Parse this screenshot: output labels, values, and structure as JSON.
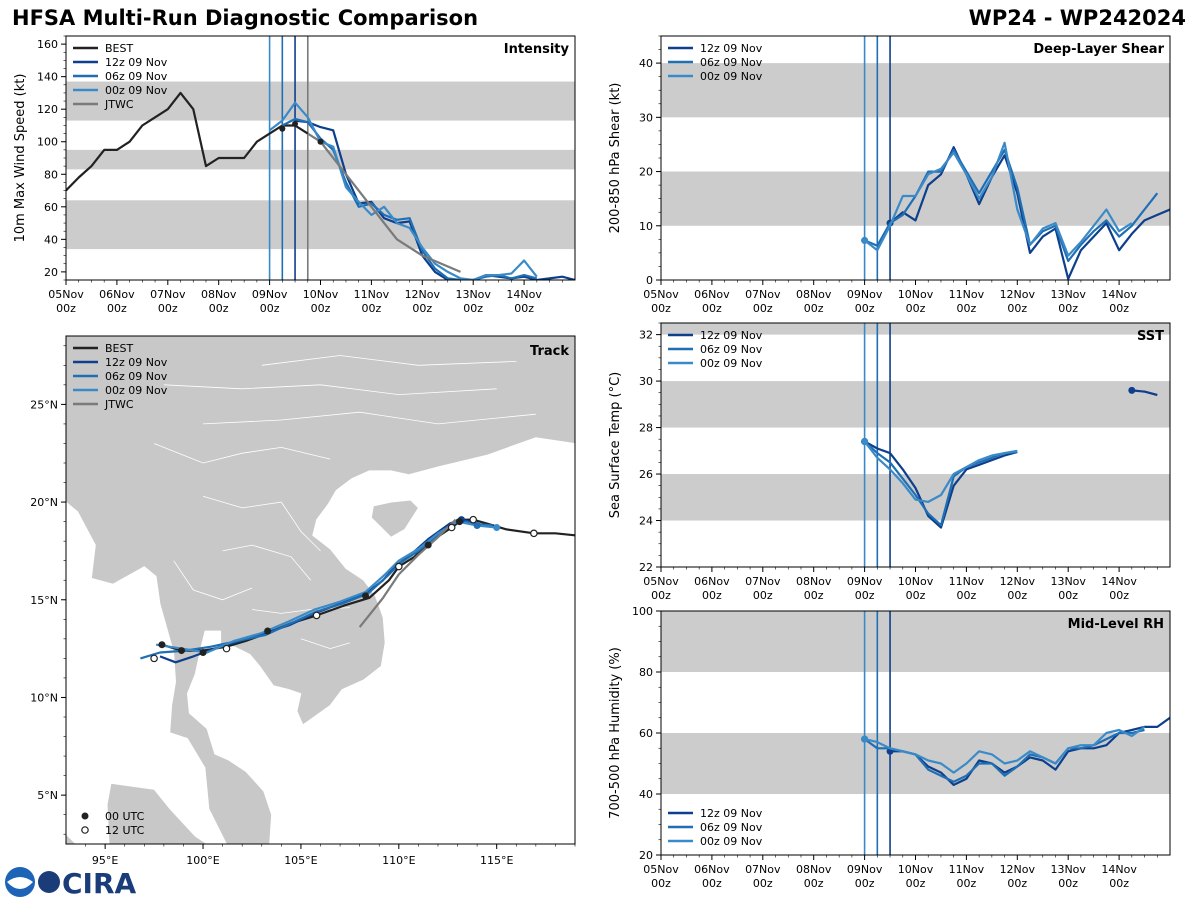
{
  "header": {
    "title": "HFSA Multi-Run Diagnostic Comparison",
    "storm_id": "WP24 - WP242024"
  },
  "colors": {
    "best": "#222222",
    "run_12z": "#0d3f8c",
    "run_06z": "#1f6fb4",
    "run_00z": "#3b8ac8",
    "jtwc": "#7a7a7a",
    "band": "#cccccc",
    "land": "#c8c8c8",
    "border": "#ffffff"
  },
  "time_axis": {
    "day_labels": [
      "05Nov",
      "06Nov",
      "07Nov",
      "08Nov",
      "09Nov",
      "10Nov",
      "11Nov",
      "12Nov",
      "13Nov",
      "14Nov"
    ],
    "hour_label": "00z"
  },
  "verticals": [
    {
      "day": 4.0,
      "run": "run_00z"
    },
    {
      "day": 4.25,
      "run": "run_06z"
    },
    {
      "day": 4.5,
      "run": "run_12z"
    },
    {
      "day": 4.75,
      "run": "jtwc"
    }
  ],
  "chart_data": [
    {
      "id": "intensity",
      "type": "line",
      "title": "Intensity",
      "ylabel": "10m Max Wind Speed (kt)",
      "xlim": [
        0,
        10
      ],
      "ylim": [
        15,
        165
      ],
      "yticks": [
        20,
        40,
        60,
        80,
        100,
        120,
        140,
        160
      ],
      "bands": [
        [
          34,
          64
        ],
        [
          83,
          95
        ],
        [
          113,
          137
        ]
      ],
      "legend": [
        "BEST",
        "12z 09 Nov",
        "06z 09 Nov",
        "00z 09 Nov",
        "JTWC"
      ],
      "series": [
        {
          "name": "BEST",
          "color_key": "best",
          "x": [
            0,
            0.25,
            0.5,
            0.75,
            1,
            1.25,
            1.5,
            1.75,
            2,
            2.25,
            2.5,
            2.75,
            3,
            3.25,
            3.5,
            3.75,
            4,
            4.25,
            4.5,
            4.75
          ],
          "y": [
            70,
            78,
            85,
            95,
            95,
            100,
            110,
            115,
            120,
            130,
            120,
            85,
            90,
            90,
            90,
            100,
            105,
            110,
            110,
            105
          ]
        },
        {
          "name": "12z 09 Nov",
          "color_key": "run_12z",
          "x": [
            4.5,
            4.75,
            5,
            5.25,
            5.5,
            5.75,
            6,
            6.25,
            6.5,
            6.75,
            7,
            7.25,
            7.5,
            7.75,
            8,
            8.25,
            8.5,
            8.75,
            9,
            9.25,
            9.5,
            9.75,
            10
          ],
          "y": [
            113,
            112,
            109,
            107,
            80,
            62,
            63,
            53,
            50,
            51,
            30,
            20,
            15,
            15,
            15,
            18,
            17,
            16,
            17,
            15,
            16,
            17,
            15
          ]
        },
        {
          "name": "06z 09 Nov",
          "color_key": "run_06z",
          "x": [
            4.25,
            4.5,
            4.75,
            5,
            5.25,
            5.5,
            5.75,
            6,
            6.25,
            6.5,
            6.75,
            7,
            7.25,
            7.5,
            7.75,
            8,
            8.25,
            8.5,
            8.75,
            9,
            9.25
          ],
          "y": [
            110,
            114,
            112,
            102,
            95,
            75,
            60,
            62,
            55,
            52,
            53,
            33,
            22,
            16,
            15,
            15,
            17,
            18,
            16,
            18,
            16
          ]
        },
        {
          "name": "00z 09 Nov",
          "color_key": "run_00z",
          "x": [
            4,
            4.25,
            4.5,
            4.75,
            5,
            5.25,
            5.5,
            5.75,
            6,
            6.25,
            6.5,
            6.75,
            7,
            7.25,
            7.5,
            7.75,
            8,
            8.25,
            8.5,
            8.75,
            9,
            9.25
          ],
          "y": [
            107,
            113,
            124,
            115,
            100,
            97,
            72,
            63,
            55,
            60,
            50,
            47,
            35,
            25,
            20,
            16,
            15,
            18,
            18,
            19,
            27,
            17
          ]
        },
        {
          "name": "JTWC",
          "color_key": "jtwc",
          "x": [
            4.75,
            5,
            5.5,
            6,
            6.5,
            7,
            7.75
          ],
          "y": [
            105,
            100,
            80,
            60,
            40,
            30,
            20
          ]
        }
      ]
    },
    {
      "id": "shear",
      "type": "line",
      "title": "Deep-Layer Shear",
      "ylabel": "200-850 hPa Shear (kt)",
      "xlim": [
        0,
        10
      ],
      "ylim": [
        0,
        45
      ],
      "yticks": [
        0,
        10,
        20,
        30,
        40
      ],
      "bands": [
        [
          10,
          20
        ],
        [
          30,
          40
        ]
      ],
      "legend": [
        "12z 09 Nov",
        "06z 09 Nov",
        "00z 09 Nov"
      ],
      "series": [
        {
          "name": "12z 09 Nov",
          "color_key": "run_12z",
          "x": [
            4.5,
            4.75,
            5,
            5.25,
            5.5,
            5.75,
            6,
            6.25,
            6.5,
            6.75,
            7,
            7.25,
            7.5,
            7.75,
            8,
            8.25,
            8.5,
            8.75,
            9,
            9.25,
            9.5,
            9.75,
            10
          ],
          "y": [
            10.5,
            12.5,
            11,
            17.5,
            19.5,
            24.5,
            19.5,
            14,
            19,
            23,
            16,
            5,
            8,
            9.5,
            0.2,
            5.5,
            8,
            10.5,
            5.5,
            8.5,
            11,
            12,
            13
          ]
        },
        {
          "name": "06z 09 Nov",
          "color_key": "run_06z",
          "x": [
            4,
            4.25,
            4.5,
            4.75,
            5,
            5.25,
            5.5,
            5.75,
            6,
            6.25,
            6.5,
            6.75,
            7,
            7.25,
            7.5,
            7.75,
            8,
            8.25,
            8.5,
            8.75,
            9,
            9.25,
            9.5,
            9.75
          ],
          "y": [
            7.3,
            6.3,
            10.5,
            12,
            15.5,
            20,
            20,
            24,
            20,
            16,
            20,
            24,
            17,
            6.5,
            9,
            10,
            3.5,
            6.5,
            9,
            11,
            8,
            10,
            13,
            16
          ]
        },
        {
          "name": "00z 09 Nov",
          "color_key": "run_00z",
          "x": [
            4,
            4.25,
            4.5,
            4.75,
            5,
            5.25,
            5.5,
            5.75,
            6,
            6.25,
            6.5,
            6.75,
            7,
            7.25,
            7.5,
            7.75,
            8,
            8.25,
            8.5,
            8.75,
            9,
            9.25
          ],
          "y": [
            7.3,
            5.5,
            10,
            15.5,
            15.5,
            19.5,
            20.5,
            23.5,
            19.5,
            15,
            19,
            25.3,
            13,
            6.5,
            9.5,
            10.5,
            4.5,
            7,
            10,
            13,
            9,
            10.5
          ]
        }
      ]
    },
    {
      "id": "sst",
      "type": "line",
      "title": "SST",
      "ylabel": "Sea Surface Temp (°C)",
      "xlim": [
        0,
        10
      ],
      "ylim": [
        22,
        32.5
      ],
      "yticks": [
        22,
        24,
        26,
        28,
        30,
        32
      ],
      "bands": [
        [
          24,
          26
        ],
        [
          28,
          30
        ],
        [
          32,
          33
        ]
      ],
      "legend": [
        "12z 09 Nov",
        "06z 09 Nov",
        "00z 09 Nov"
      ],
      "series": [
        {
          "name": "12z 09 Nov",
          "color_key": "run_12z",
          "x": [
            4,
            4.25,
            4.5,
            4.75,
            5,
            5.25,
            5.5,
            5.75,
            6,
            6.25,
            6.5,
            6.75,
            7
          ],
          "y": [
            27.4,
            27.1,
            26.9,
            26.2,
            25.4,
            24.2,
            23.7,
            25.5,
            26.2,
            26.4,
            26.6,
            26.8,
            26.95
          ]
        },
        {
          "name": "06z 09 Nov",
          "color_key": "run_06z",
          "x": [
            4,
            4.25,
            4.5,
            4.75,
            5,
            5.25,
            5.5,
            5.75,
            6,
            6.25,
            6.5,
            6.75,
            7
          ],
          "y": [
            27.4,
            26.9,
            26.5,
            25.8,
            25.1,
            24.3,
            23.8,
            25.9,
            26.3,
            26.5,
            26.7,
            26.9,
            26.95
          ]
        },
        {
          "name": "00z 09 Nov",
          "color_key": "run_00z",
          "x": [
            4,
            4.25,
            4.5,
            4.75,
            5,
            5.25,
            5.5,
            5.75,
            6,
            6.25,
            6.5,
            6.75,
            7
          ],
          "y": [
            27.4,
            26.7,
            26.2,
            25.6,
            24.9,
            24.8,
            25.1,
            26.0,
            26.3,
            26.6,
            26.8,
            26.9,
            27.0
          ]
        },
        {
          "name": "12z 09 Nov late",
          "color_key": "run_12z",
          "x": [
            9.25,
            9.5,
            9.75
          ],
          "y": [
            29.6,
            29.55,
            29.4
          ]
        }
      ]
    },
    {
      "id": "rh",
      "type": "line",
      "title": "Mid-Level RH",
      "ylabel": "700-500 hPa Humidity (%)",
      "xlim": [
        0,
        10
      ],
      "ylim": [
        20,
        100
      ],
      "yticks": [
        20,
        40,
        60,
        80,
        100
      ],
      "bands": [
        [
          40,
          60
        ],
        [
          80,
          100
        ]
      ],
      "legend": [
        "12z 09 Nov",
        "06z 09 Nov",
        "00z 09 Nov"
      ],
      "series": [
        {
          "name": "12z 09 Nov",
          "color_key": "run_12z",
          "x": [
            4.5,
            4.75,
            5,
            5.25,
            5.5,
            5.75,
            6,
            6.25,
            6.5,
            6.75,
            7,
            7.25,
            7.5,
            7.75,
            8,
            8.25,
            8.5,
            8.75,
            9,
            9.25,
            9.5,
            9.75,
            10
          ],
          "y": [
            54,
            54,
            53,
            49,
            47,
            43,
            45,
            51,
            50,
            47,
            49,
            52,
            51,
            48,
            54,
            55,
            55,
            56,
            60,
            61,
            62,
            62,
            65
          ]
        },
        {
          "name": "06z 09 Nov",
          "color_key": "run_06z",
          "x": [
            4,
            4.25,
            4.5,
            4.75,
            5,
            5.25,
            5.5,
            5.75,
            6,
            6.25,
            6.5,
            6.75,
            7,
            7.25,
            7.5,
            7.75,
            8,
            8.25,
            8.5,
            8.75,
            9,
            9.25,
            9.5
          ],
          "y": [
            58,
            55,
            55,
            54,
            53,
            48,
            46,
            44,
            46,
            50,
            50,
            46,
            49,
            53,
            52,
            50,
            55,
            55,
            56,
            58,
            60,
            60,
            61
          ]
        },
        {
          "name": "00z 09 Nov",
          "color_key": "run_00z",
          "x": [
            4,
            4.25,
            4.5,
            4.75,
            5,
            5.25,
            5.5,
            5.75,
            6,
            6.25,
            6.5,
            6.75,
            7,
            7.25,
            7.5,
            7.75,
            8,
            8.25,
            8.5,
            8.75,
            9,
            9.25,
            9.5
          ],
          "y": [
            58,
            57,
            55,
            54,
            53,
            51,
            50,
            47,
            50,
            54,
            53,
            50,
            51,
            54,
            52,
            50,
            55,
            56,
            56,
            60,
            61,
            59,
            62
          ]
        }
      ]
    },
    {
      "id": "track",
      "type": "scatter",
      "title": "Track",
      "xlim": [
        93,
        119
      ],
      "ylim": [
        2.5,
        28.5
      ],
      "xticks": [
        95,
        100,
        105,
        110,
        115
      ],
      "xtick_labels": [
        "95°E",
        "100°E",
        "105°E",
        "110°E",
        "115°E"
      ],
      "yticks": [
        5,
        10,
        15,
        20,
        25
      ],
      "ytick_labels": [
        "5°N",
        "10°N",
        "15°N",
        "20°N",
        "25°N"
      ],
      "legend": [
        "BEST",
        "12z 09 Nov",
        "06z 09 Nov",
        "00z 09 Nov",
        "JTWC"
      ],
      "marker_legend": [
        "00 UTC",
        "12 UTC"
      ],
      "series": [
        {
          "name": "BEST",
          "color_key": "best",
          "lon": [
            119,
            118,
            116.9,
            115.5,
            114.5,
            113.8,
            113.4,
            113.1,
            112.7,
            111.5,
            110.8,
            110,
            109.5,
            108.5,
            107.2,
            105.8,
            104.5,
            103.3,
            102.2,
            101.2,
            100,
            98.9,
            97.9
          ],
          "lat": [
            18.3,
            18.4,
            18.4,
            18.6,
            18.9,
            19.1,
            19.1,
            19.0,
            18.7,
            17.9,
            17.2,
            16.7,
            16.0,
            15.1,
            14.7,
            14.2,
            13.8,
            13.3,
            12.9,
            12.6,
            12.4,
            12.4,
            12.7
          ]
        },
        {
          "name": "12z 09 Nov",
          "color_key": "run_12z",
          "lon": [
            114.0,
            113.2,
            112.6,
            111.5,
            110.6,
            109.8,
            109.2,
            108.3,
            107,
            105.7,
            104.4,
            103.2,
            101.9,
            100.6,
            99.5,
            98.6,
            97.8
          ],
          "lat": [
            18.9,
            19.1,
            18.9,
            18.1,
            17.3,
            16.7,
            16.0,
            15.3,
            14.8,
            14.3,
            13.7,
            13.3,
            12.9,
            12.5,
            12.1,
            11.8,
            12.1
          ]
        },
        {
          "name": "06z 09 Nov",
          "color_key": "run_06z",
          "lon": [
            114.8,
            113.8,
            113.0,
            112.0,
            111.0,
            110.1,
            109.4,
            108.4,
            107.1,
            105.8,
            104.5,
            103.2,
            101.8,
            100.4,
            99.1,
            97.8,
            96.8
          ],
          "lat": [
            18.8,
            18.9,
            19.1,
            18.3,
            17.5,
            16.9,
            16.2,
            15.3,
            14.8,
            14.4,
            13.8,
            13.2,
            12.9,
            12.6,
            12.4,
            12.3,
            12.0
          ]
        },
        {
          "name": "00z 09 Nov",
          "color_key": "run_00z",
          "lon": [
            115.0,
            114.0,
            113.0,
            112.0,
            111.0,
            110.0,
            109.3,
            108.3,
            107.0,
            105.7,
            104.4,
            103.0,
            101.6,
            100.2,
            98.9,
            97.6
          ],
          "lat": [
            18.7,
            18.8,
            19.0,
            18.4,
            17.6,
            17.0,
            16.3,
            15.4,
            14.9,
            14.5,
            13.9,
            13.3,
            12.9,
            12.3,
            12.5,
            12.7
          ]
        },
        {
          "name": "JTWC",
          "color_key": "jtwc",
          "lon": [
            112.9,
            112.0,
            111.0,
            110.0,
            109.2,
            108.0
          ],
          "lat": [
            19.1,
            18.2,
            17.3,
            16.3,
            15.1,
            13.6
          ]
        }
      ],
      "markers_00utc": {
        "lon": [
          113.1,
          111.5,
          108.3,
          103.3,
          100,
          97.9,
          98.9
        ],
        "lat": [
          19.0,
          17.8,
          15.2,
          13.4,
          12.3,
          12.7,
          12.4
        ]
      },
      "markers_12utc": {
        "lon": [
          116.9,
          113.8,
          112.7,
          110,
          105.8,
          101.2,
          97.5
        ],
        "lat": [
          18.4,
          19.1,
          18.7,
          16.7,
          14.2,
          12.5,
          12.0
        ]
      }
    }
  ],
  "logo": {
    "text": "CIRA"
  }
}
